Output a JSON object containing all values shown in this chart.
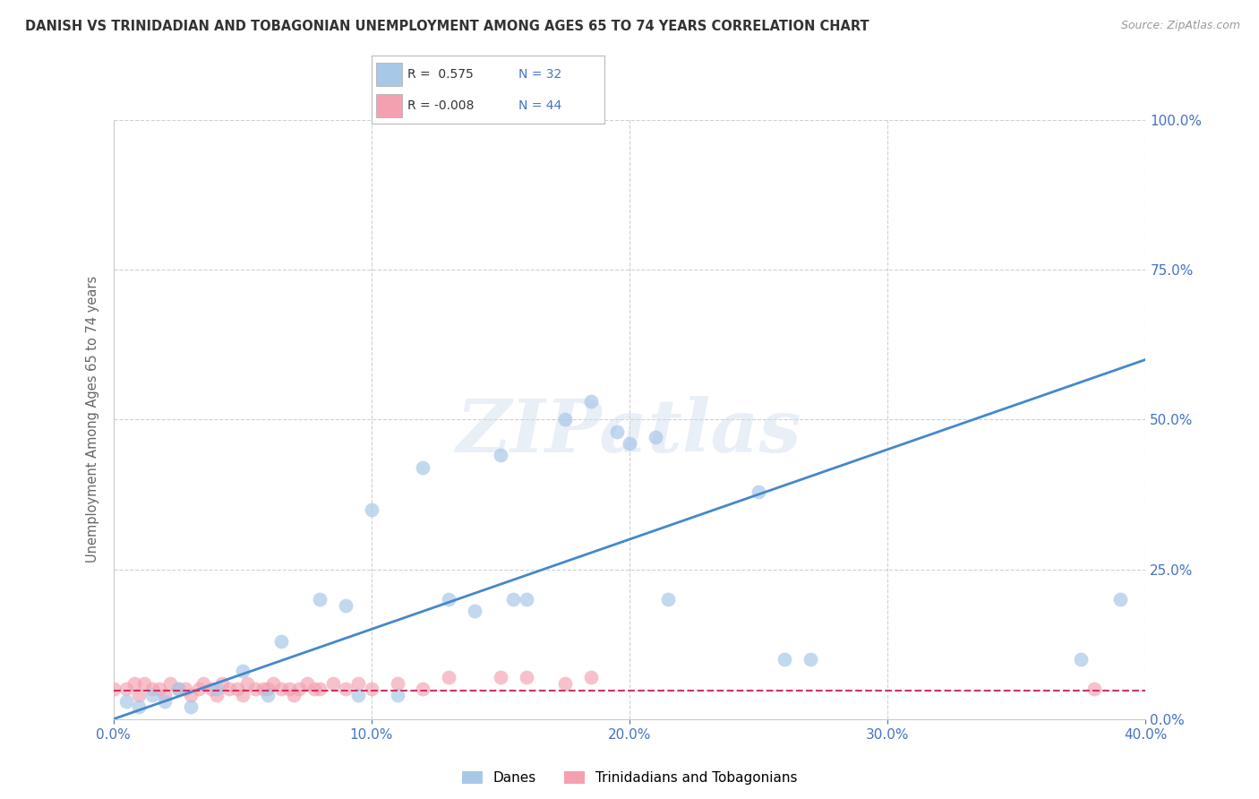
{
  "title": "DANISH VS TRINIDADIAN AND TOBAGONIAN UNEMPLOYMENT AMONG AGES 65 TO 74 YEARS CORRELATION CHART",
  "source": "Source: ZipAtlas.com",
  "ylabel": "Unemployment Among Ages 65 to 74 years",
  "xlim": [
    0.0,
    0.4
  ],
  "ylim": [
    0.0,
    1.0
  ],
  "xticks": [
    0.0,
    0.1,
    0.2,
    0.3,
    0.4
  ],
  "yticks": [
    0.0,
    0.25,
    0.5,
    0.75,
    1.0
  ],
  "xtick_labels": [
    "0.0%",
    "10.0%",
    "20.0%",
    "30.0%",
    "40.0%"
  ],
  "ytick_labels": [
    "0.0%",
    "25.0%",
    "50.0%",
    "75.0%",
    "100.0%"
  ],
  "blue_color": "#a8c8e8",
  "pink_color": "#f4a0b0",
  "blue_line_color": "#4488cc",
  "pink_line_color": "#cc3366",
  "tick_color": "#4472c4",
  "legend_label1": "Danes",
  "legend_label2": "Trinidadians and Tobagonians",
  "watermark": "ZIPatlas",
  "background_color": "#ffffff",
  "grid_color": "#cccccc",
  "blue_x": [
    0.005,
    0.01,
    0.015,
    0.02,
    0.025,
    0.03,
    0.04,
    0.05,
    0.06,
    0.065,
    0.08,
    0.09,
    0.095,
    0.1,
    0.11,
    0.12,
    0.13,
    0.14,
    0.15,
    0.155,
    0.16,
    0.175,
    0.185,
    0.195,
    0.2,
    0.21,
    0.215,
    0.25,
    0.26,
    0.27,
    0.375,
    0.39
  ],
  "blue_y": [
    0.03,
    0.02,
    0.04,
    0.03,
    0.05,
    0.02,
    0.05,
    0.08,
    0.04,
    0.13,
    0.2,
    0.19,
    0.04,
    0.35,
    0.04,
    0.42,
    0.2,
    0.18,
    0.44,
    0.2,
    0.2,
    0.5,
    0.53,
    0.48,
    0.46,
    0.47,
    0.2,
    0.38,
    0.1,
    0.1,
    0.1,
    0.2
  ],
  "pink_x": [
    0.0,
    0.005,
    0.008,
    0.01,
    0.012,
    0.015,
    0.018,
    0.02,
    0.022,
    0.025,
    0.028,
    0.03,
    0.033,
    0.035,
    0.038,
    0.04,
    0.042,
    0.045,
    0.048,
    0.05,
    0.052,
    0.055,
    0.058,
    0.06,
    0.062,
    0.065,
    0.068,
    0.07,
    0.072,
    0.075,
    0.078,
    0.08,
    0.085,
    0.09,
    0.095,
    0.1,
    0.11,
    0.12,
    0.13,
    0.15,
    0.16,
    0.175,
    0.185,
    0.38
  ],
  "pink_y": [
    0.05,
    0.05,
    0.06,
    0.04,
    0.06,
    0.05,
    0.05,
    0.04,
    0.06,
    0.05,
    0.05,
    0.04,
    0.05,
    0.06,
    0.05,
    0.04,
    0.06,
    0.05,
    0.05,
    0.04,
    0.06,
    0.05,
    0.05,
    0.05,
    0.06,
    0.05,
    0.05,
    0.04,
    0.05,
    0.06,
    0.05,
    0.05,
    0.06,
    0.05,
    0.06,
    0.05,
    0.06,
    0.05,
    0.07,
    0.07,
    0.07,
    0.06,
    0.07,
    0.05
  ],
  "blue_line_x": [
    0.0,
    0.4
  ],
  "blue_line_y": [
    0.0,
    0.6
  ],
  "pink_line_x": [
    0.0,
    0.4
  ],
  "pink_line_y": [
    0.048,
    0.048
  ]
}
